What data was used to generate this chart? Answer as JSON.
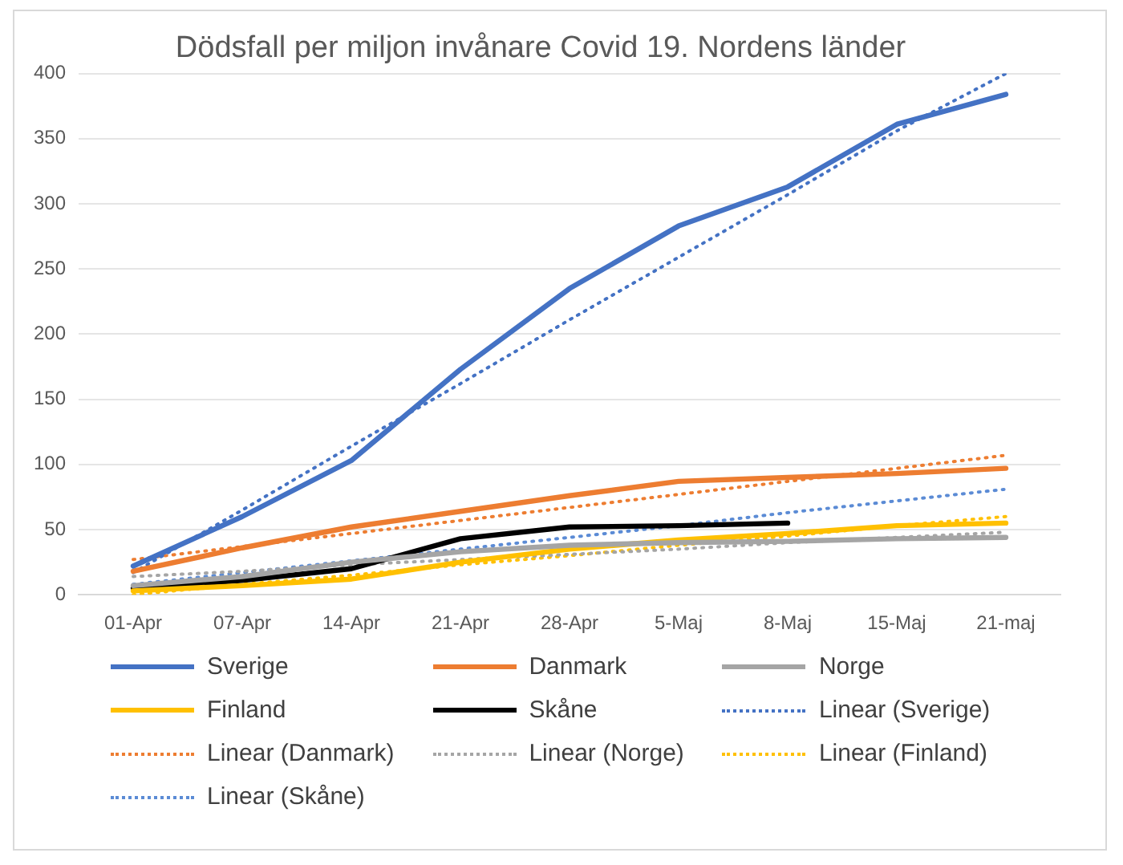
{
  "chart_data": {
    "type": "line",
    "title": "Dödsfall per miljon invånare Covid 19. Nordens länder",
    "categories": [
      "01-Apr",
      "07-Apr",
      "14-Apr",
      "21-Apr",
      "28-Apr",
      "5-Maj",
      "8-Maj",
      "15-Maj",
      "21-maj"
    ],
    "ylim": [
      0,
      400
    ],
    "yticks": [
      0,
      50,
      100,
      150,
      200,
      250,
      300,
      350,
      400
    ],
    "grid": "y",
    "legend": "bottom",
    "marker": "none",
    "series": [
      {
        "name": "Sverige",
        "color": "#4472c4",
        "line_style": "solid",
        "values": [
          22,
          60,
          103,
          173,
          235,
          283,
          313,
          361,
          384
        ]
      },
      {
        "name": "Danmark",
        "color": "#ed7d31",
        "line_style": "solid",
        "values": [
          18,
          36,
          52,
          64,
          76,
          87,
          90,
          93,
          97
        ]
      },
      {
        "name": "Norge",
        "color": "#a5a5a5",
        "line_style": "solid",
        "values": [
          7,
          14,
          25,
          33,
          38,
          40,
          41,
          43,
          44
        ]
      },
      {
        "name": "Finland",
        "color": "#ffc000",
        "line_style": "solid",
        "values": [
          3,
          7,
          12,
          25,
          35,
          42,
          47,
          53,
          55
        ]
      },
      {
        "name": "Skåne",
        "color": "#000000",
        "line_style": "solid",
        "values": [
          5,
          11,
          20,
          43,
          52,
          53,
          55,
          null,
          null
        ]
      },
      {
        "name": "Linear (Sverige)",
        "color": "#4472c4",
        "line_style": "dotted",
        "values": [
          17,
          65,
          114,
          162,
          211,
          259,
          307,
          356,
          400
        ]
      },
      {
        "name": "Linear (Danmark)",
        "color": "#ed7d31",
        "line_style": "dotted",
        "values": [
          27,
          37,
          47,
          57,
          67,
          77,
          87,
          97,
          107
        ]
      },
      {
        "name": "Linear (Norge)",
        "color": "#a5a5a5",
        "line_style": "dotted",
        "values": [
          14,
          18,
          23,
          27,
          31,
          35,
          40,
          44,
          48
        ]
      },
      {
        "name": "Linear (Finland)",
        "color": "#ffc000",
        "line_style": "dotted",
        "values": [
          0,
          8,
          15,
          23,
          30,
          38,
          45,
          53,
          60
        ]
      },
      {
        "name": "Linear (Skåne)",
        "color": "#5b8bd5",
        "line_style": "dotted",
        "values": [
          8,
          17,
          26,
          35,
          44,
          53,
          63,
          72,
          81
        ]
      }
    ]
  }
}
